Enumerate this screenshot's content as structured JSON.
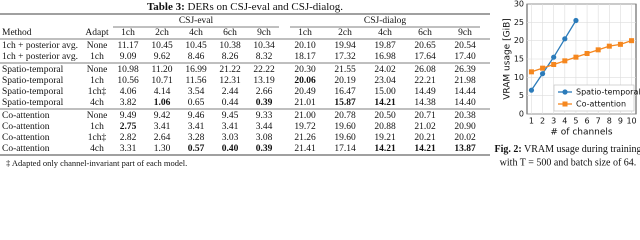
{
  "table": {
    "title_label": "Table 3:",
    "title": "DERs on CSJ-eval and CSJ-dialog.",
    "headers": [
      "Method",
      "Adapt"
    ],
    "groups": [
      "CSJ-eval",
      "CSJ-dialog"
    ],
    "subheaders": [
      "1ch",
      "2ch",
      "4ch",
      "6ch",
      "9ch",
      "1ch",
      "2ch",
      "4ch",
      "6ch",
      "9ch"
    ],
    "sections": [
      [
        {
          "method": "1ch + posterior avg.",
          "adapt": "None",
          "values": [
            "11.17",
            "10.45",
            "10.45",
            "10.38",
            "10.34",
            "20.10",
            "19.94",
            "19.87",
            "20.65",
            "20.54"
          ],
          "bold": []
        },
        {
          "method": "1ch + posterior avg.",
          "adapt": "1ch",
          "values": [
            "9.09",
            "9.62",
            "8.46",
            "8.26",
            "8.32",
            "18.17",
            "17.32",
            "16.98",
            "17.64",
            "17.40"
          ],
          "bold": []
        }
      ],
      [
        {
          "method": "Spatio-temporal",
          "adapt": "None",
          "values": [
            "10.98",
            "11.20",
            "16.99",
            "21.22",
            "22.22",
            "20.30",
            "21.55",
            "24.02",
            "26.08",
            "26.39"
          ],
          "bold": []
        },
        {
          "method": "Spatio-temporal",
          "adapt": "1ch",
          "values": [
            "10.56",
            "10.71",
            "11.56",
            "12.31",
            "13.19",
            "20.06",
            "20.19",
            "23.04",
            "22.21",
            "21.98"
          ],
          "bold": [
            5
          ]
        },
        {
          "method": "Spatio-temporal",
          "adapt": "1ch‡",
          "values": [
            "4.06",
            "4.14",
            "3.54",
            "2.44",
            "2.66",
            "20.49",
            "16.47",
            "15.00",
            "14.49",
            "14.44"
          ],
          "bold": []
        },
        {
          "method": "Spatio-temporal",
          "adapt": "4ch",
          "values": [
            "3.82",
            "1.06",
            "0.65",
            "0.44",
            "0.39",
            "21.01",
            "15.87",
            "14.21",
            "14.38",
            "14.40"
          ],
          "bold": [
            1,
            4,
            6,
            7
          ]
        }
      ],
      [
        {
          "method": "Co-attention",
          "adapt": "None",
          "values": [
            "9.49",
            "9.42",
            "9.46",
            "9.45",
            "9.33",
            "21.00",
            "20.78",
            "20.50",
            "20.71",
            "20.38"
          ],
          "bold": []
        },
        {
          "method": "Co-attention",
          "adapt": "1ch",
          "values": [
            "2.75",
            "3.41",
            "3.41",
            "3.41",
            "3.44",
            "19.72",
            "19.60",
            "20.88",
            "21.02",
            "20.90"
          ],
          "bold": [
            0
          ]
        },
        {
          "method": "Co-attention",
          "adapt": "1ch‡",
          "values": [
            "2.82",
            "2.64",
            "3.28",
            "3.03",
            "3.08",
            "21.26",
            "19.60",
            "19.21",
            "20.21",
            "20.02"
          ],
          "bold": []
        },
        {
          "method": "Co-attention",
          "adapt": "4ch",
          "values": [
            "3.31",
            "1.30",
            "0.57",
            "0.40",
            "0.39",
            "21.41",
            "17.14",
            "14.21",
            "14.21",
            "13.87"
          ],
          "bold": [
            2,
            3,
            4,
            7,
            8,
            9
          ]
        }
      ]
    ],
    "footnote": "‡ Adapted only channel-invariant part of each model."
  },
  "chart_data": {
    "type": "line",
    "y_label": "VRAM usage [GiB]",
    "x_label": "# of channels",
    "xlim": [
      0.6,
      10.4
    ],
    "xticks": [
      1,
      2,
      3,
      4,
      5,
      6,
      7,
      8,
      9,
      10
    ],
    "ylim": [
      0,
      30
    ],
    "yticks": [
      0,
      5,
      10,
      15,
      20,
      25,
      30
    ],
    "grid": true,
    "legend": "lower-right",
    "series": [
      {
        "name": "Spatio-temporal",
        "color": "#2b7bba",
        "marker": "circle",
        "x": [
          1,
          2,
          3,
          4,
          5
        ],
        "values": [
          6.5,
          11,
          15.5,
          20.5,
          25.5
        ]
      },
      {
        "name": "Co-attention",
        "color": "#f5871f",
        "marker": "square",
        "x": [
          1,
          2,
          3,
          4,
          5,
          6,
          7,
          8,
          9,
          10
        ],
        "values": [
          11.5,
          12.5,
          13.5,
          14.5,
          15.5,
          16.5,
          17.5,
          18.5,
          19,
          20
        ]
      }
    ]
  },
  "caption": {
    "label": "Fig. 2:",
    "lines": [
      "VRAM usage during training",
      "with T = 500 and batch size of 64."
    ]
  }
}
